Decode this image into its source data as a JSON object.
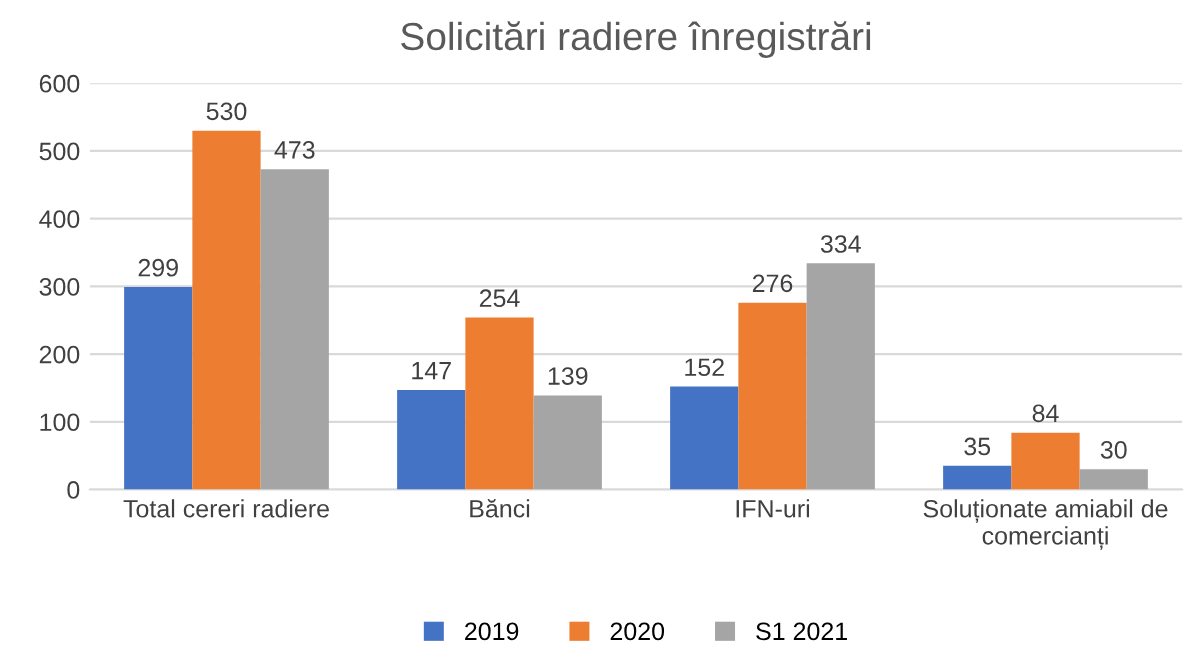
{
  "chart_data": {
    "type": "bar",
    "title": "Solicitări radiere înregistrări",
    "categories": [
      "Total cereri radiere",
      "Bănci",
      "IFN-uri",
      "Soluționate amiabil de comercianți"
    ],
    "series": [
      {
        "name": "2019",
        "color": "#4472c4",
        "values": [
          299,
          147,
          152,
          35
        ]
      },
      {
        "name": "2020",
        "color": "#ed7d31",
        "values": [
          530,
          254,
          276,
          84
        ]
      },
      {
        "name": "S1 2021",
        "color": "#a5a5a5",
        "values": [
          473,
          139,
          334,
          30
        ]
      }
    ],
    "ylim": [
      0,
      600
    ],
    "yticks": [
      0,
      100,
      200,
      300,
      400,
      500,
      600
    ],
    "grid": "y",
    "legend": "bottom",
    "data_labels": true
  }
}
